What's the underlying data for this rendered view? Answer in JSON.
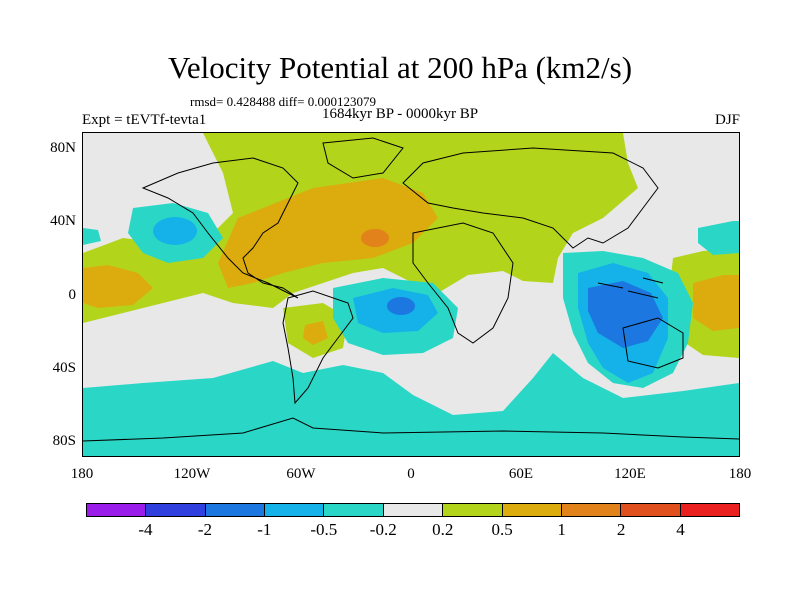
{
  "title": "Velocity Potential at 200 hPa (km2/s)",
  "stats": "rmsd= 0.428488 diff= 0.000123079",
  "experiment": "Expt = tEVTf-tevta1",
  "period": "1684kyr BP - 0000kyr BP",
  "season": "DJF",
  "lat_labels": [
    "80N",
    "40N",
    "0",
    "40S",
    "80S"
  ],
  "lon_labels": [
    "180",
    "120W",
    "60W",
    "0",
    "60E",
    "120E",
    "180"
  ],
  "colorbar": {
    "colors": [
      "#9b1dea",
      "#2f40df",
      "#1c78e0",
      "#14b2e8",
      "#2ad7c6",
      "#e8e8e8",
      "#b2d51c",
      "#dcab0e",
      "#e2821a",
      "#e0501e",
      "#ea2020"
    ],
    "labels": [
      "-4",
      "-2",
      "-1",
      "-0.5",
      "-0.2",
      "0.2",
      "0.5",
      "1",
      "2",
      "4"
    ]
  }
}
